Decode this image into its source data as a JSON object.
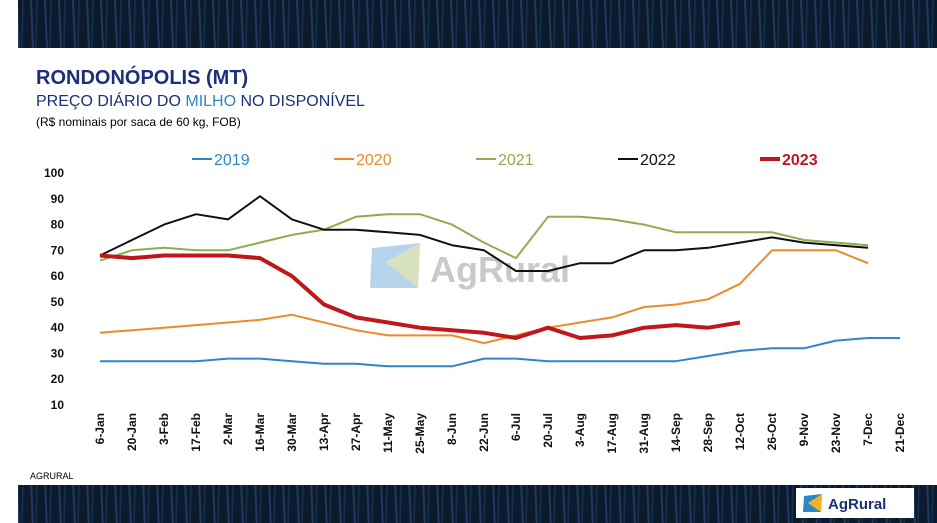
{
  "chart_data": {
    "type": "line",
    "title": "RONDONÓPOLIS (MT)",
    "subtitle_parts": [
      "PREÇO DIÁRIO DO ",
      "MILHO",
      " NO DISPONÍVEL"
    ],
    "note": "(R$ nominais por saca de 60 kg, FOB)",
    "source": "AGRURAL",
    "watermark": "AgRural",
    "logo": "AgRural",
    "categories": [
      "6-Jan",
      "20-Jan",
      "3-Feb",
      "17-Feb",
      "2-Mar",
      "16-Mar",
      "30-Mar",
      "13-Apr",
      "27-Apr",
      "11-May",
      "25-May",
      "8-Jun",
      "22-Jun",
      "6-Jul",
      "20-Jul",
      "3-Aug",
      "17-Aug",
      "31-Aug",
      "14-Sep",
      "28-Sep",
      "12-Oct",
      "26-Oct",
      "9-Nov",
      "23-Nov",
      "7-Dec",
      "21-Dec"
    ],
    "ylim": [
      10,
      100
    ],
    "yticks": [
      10,
      20,
      30,
      40,
      50,
      60,
      70,
      80,
      90,
      100
    ],
    "grid": false,
    "series": [
      {
        "name": "2019",
        "color": "#2e86c8",
        "values": [
          27,
          27,
          27,
          27,
          28,
          28,
          27,
          26,
          26,
          25,
          25,
          25,
          28,
          28,
          27,
          27,
          27,
          27,
          27,
          29,
          31,
          32,
          32,
          35,
          36,
          36
        ]
      },
      {
        "name": "2020",
        "color": "#ee8a2e",
        "values": [
          38,
          39,
          40,
          41,
          42,
          43,
          45,
          42,
          39,
          37,
          37,
          37,
          34,
          37,
          40,
          42,
          44,
          48,
          49,
          51,
          57,
          70,
          70,
          70,
          65,
          null
        ]
      },
      {
        "name": "2021",
        "color": "#8ead4f",
        "values": [
          66,
          70,
          71,
          70,
          70,
          73,
          76,
          78,
          83,
          84,
          84,
          80,
          73,
          67,
          83,
          83,
          82,
          80,
          77,
          77,
          77,
          77,
          74,
          73,
          72,
          null
        ]
      },
      {
        "name": "2022",
        "color": "#111111",
        "values": [
          68,
          74,
          80,
          84,
          82,
          91,
          82,
          78,
          78,
          77,
          76,
          72,
          70,
          62,
          62,
          65,
          65,
          70,
          70,
          71,
          73,
          75,
          73,
          72,
          71,
          null
        ]
      },
      {
        "name": "2023",
        "color": "#c0171c",
        "values": [
          68,
          67,
          68,
          68,
          68,
          67,
          60,
          49,
          44,
          42,
          40,
          39,
          38,
          36,
          40,
          36,
          37,
          40,
          41,
          40,
          42,
          null,
          null,
          null,
          null,
          null
        ]
      }
    ]
  }
}
